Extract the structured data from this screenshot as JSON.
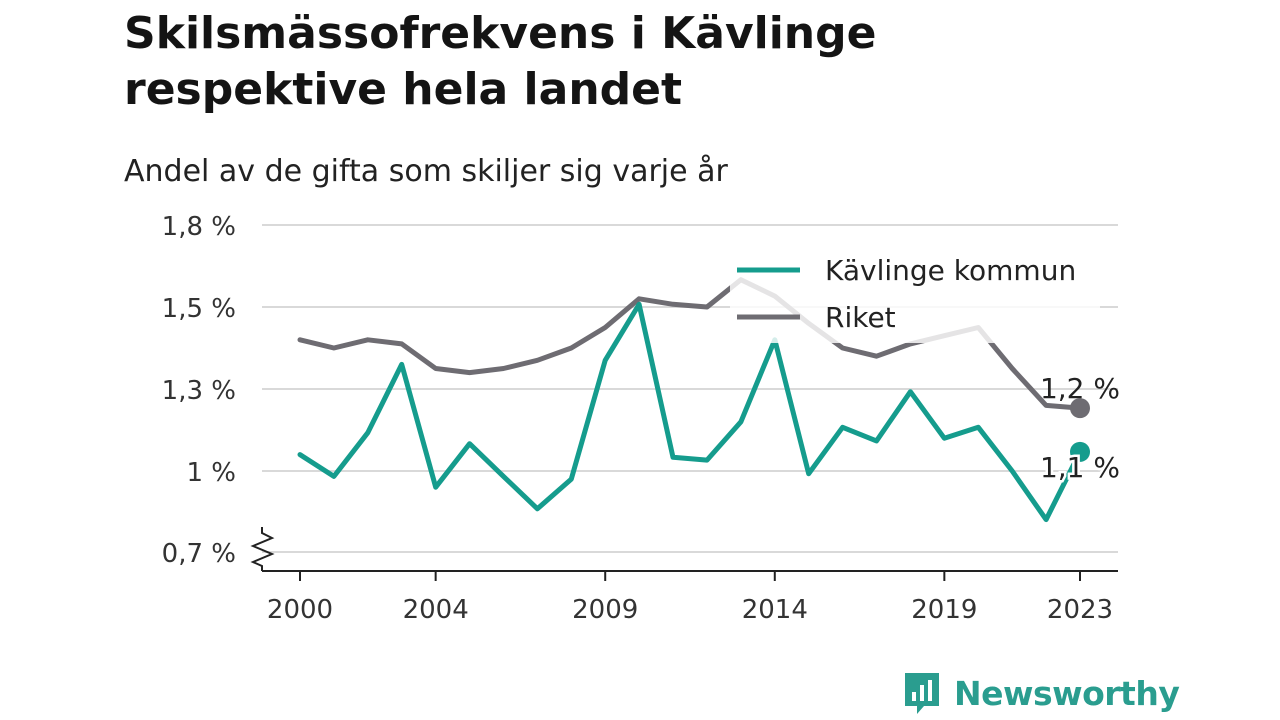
{
  "title": "Skilsmässofrekvens i Kävlinge respektive hela landet",
  "subtitle": "Andel av de gifta som skiljer sig varje år",
  "brand": "Newsworthy",
  "colors": {
    "kavlinge": "#159c8d",
    "riket": "#6e6c72",
    "grid": "#d9d9d9",
    "brand": "#2a9d8f"
  },
  "chart_data": {
    "type": "line",
    "x_ticks": [
      2000,
      2004,
      2009,
      2014,
      2019,
      2023
    ],
    "xlim": [
      2000,
      2023
    ],
    "y_ticks": [
      0.7,
      1.0,
      1.3,
      1.5,
      1.8
    ],
    "y_tick_labels": [
      "0,7 %",
      "1 %",
      "1,3 %",
      "1,5 %",
      "1,8 %"
    ],
    "ylim": [
      0.7,
      1.8
    ],
    "legend_position": "top-right",
    "series": [
      {
        "name": "Kävlinge kommun",
        "color": "#159c8d",
        "end_label": "1,1 %",
        "x": [
          2000,
          2001,
          2002,
          2003,
          2004,
          2005,
          2006,
          2007,
          2008,
          2009,
          2010,
          2011,
          2012,
          2013,
          2014,
          2015,
          2016,
          2017,
          2018,
          2019,
          2020,
          2021,
          2022,
          2023
        ],
        "values": [
          1.06,
          0.98,
          1.14,
          1.36,
          0.94,
          1.1,
          0.98,
          0.86,
          0.97,
          1.37,
          1.51,
          1.05,
          1.04,
          1.18,
          1.42,
          0.99,
          1.16,
          1.11,
          1.29,
          1.12,
          1.16,
          1.0,
          0.82,
          1.07
        ]
      },
      {
        "name": "Riket",
        "color": "#6e6c72",
        "end_label": "1,2 %",
        "x": [
          2000,
          2001,
          2002,
          2003,
          2004,
          2005,
          2006,
          2007,
          2008,
          2009,
          2010,
          2011,
          2012,
          2013,
          2014,
          2015,
          2016,
          2017,
          2018,
          2019,
          2020,
          2021,
          2022,
          2023
        ],
        "values": [
          1.42,
          1.4,
          1.42,
          1.41,
          1.35,
          1.34,
          1.35,
          1.37,
          1.4,
          1.45,
          1.53,
          1.51,
          1.5,
          1.6,
          1.54,
          1.46,
          1.4,
          1.38,
          1.41,
          1.43,
          1.45,
          1.35,
          1.24,
          1.23
        ]
      }
    ]
  }
}
